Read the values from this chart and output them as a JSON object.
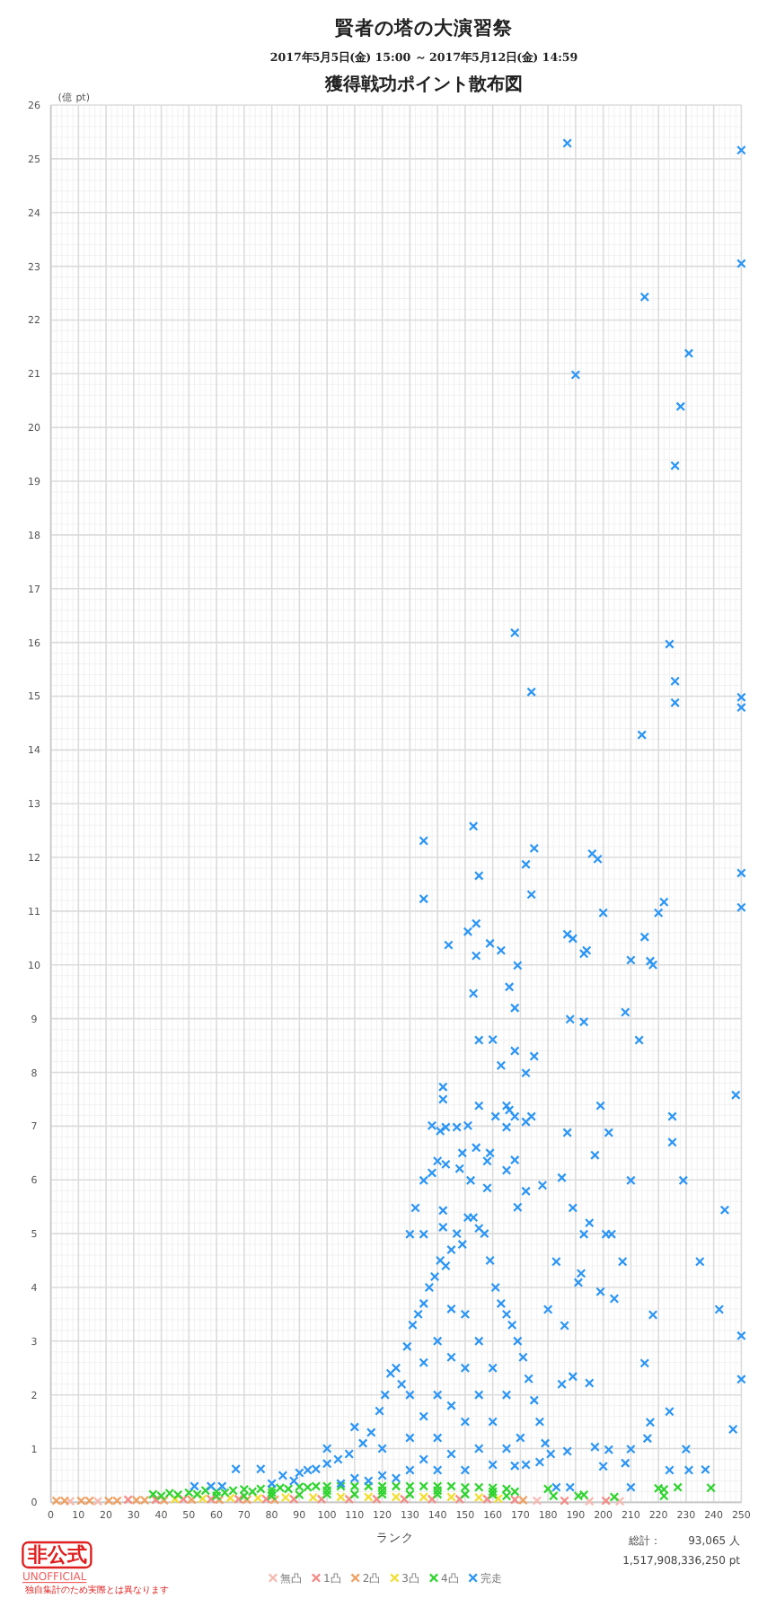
{
  "chart_data": {
    "type": "scatter",
    "title": "賢者の塔の大演習祭",
    "subtitle": "2017年5月5日(金) 15:00 ～ 2017年5月12日(金) 14:59",
    "xlabel": "ランク",
    "ylabel": "(億 pt)",
    "annotations": [
      "獲得戦功ポイント散布図",
      "総計：",
      "93,065 人",
      "1,517,908,336,250 pt",
      "非公式",
      "UNOFFICIAL",
      "独自集計のため実際とは異なります"
    ],
    "xlim": [
      0,
      250
    ],
    "ylim": [
      0,
      26
    ],
    "xticks": [
      0,
      10,
      20,
      30,
      40,
      50,
      60,
      70,
      80,
      90,
      100,
      110,
      120,
      130,
      140,
      150,
      160,
      170,
      180,
      190,
      200,
      210,
      220,
      230,
      240,
      250
    ],
    "yticks": [
      0,
      1,
      2,
      3,
      4,
      5,
      6,
      7,
      8,
      9,
      10,
      11,
      12,
      13,
      14,
      15,
      16,
      17,
      18,
      19,
      20,
      21,
      22,
      23,
      24,
      25,
      26
    ],
    "grid": true,
    "legend": "bottom",
    "marker": "cross",
    "series": [
      {
        "name": "無凸",
        "color": "#f7b9b0",
        "x": [
          7,
          17,
          176,
          195,
          206
        ],
        "values": [
          0.02,
          0.02,
          0.03,
          0.02,
          0.02
        ]
      },
      {
        "name": "1凸",
        "color": "#f48a84",
        "x": [
          28,
          38,
          48,
          58,
          68,
          78,
          88,
          98,
          108,
          118,
          128,
          138,
          148,
          158,
          168,
          186,
          201
        ],
        "values": [
          0.05,
          0.05,
          0.06,
          0.06,
          0.06,
          0.06,
          0.06,
          0.06,
          0.06,
          0.06,
          0.06,
          0.06,
          0.06,
          0.06,
          0.05,
          0.03,
          0.03
        ]
      },
      {
        "name": "2凸",
        "color": "#f0a060",
        "x": [
          2,
          5,
          11,
          14,
          21,
          24,
          31,
          34,
          41,
          51,
          61,
          71,
          81,
          171
        ],
        "values": [
          0.03,
          0.03,
          0.03,
          0.03,
          0.03,
          0.03,
          0.04,
          0.04,
          0.04,
          0.05,
          0.05,
          0.05,
          0.05,
          0.04
        ]
      },
      {
        "name": "3凸",
        "color": "#f2de30",
        "x": [
          45,
          55,
          65,
          75,
          85,
          95,
          105,
          115,
          125,
          135,
          145,
          155,
          162
        ],
        "values": [
          0.06,
          0.07,
          0.08,
          0.08,
          0.09,
          0.09,
          0.1,
          0.1,
          0.1,
          0.1,
          0.1,
          0.09,
          0.07
        ]
      },
      {
        "name": "4凸",
        "color": "#2ed42e",
        "x": [
          37,
          40,
          43,
          46,
          50,
          53,
          56,
          60,
          63,
          66,
          70,
          73,
          76,
          80,
          83,
          86,
          90,
          93,
          96,
          100,
          105,
          110,
          115,
          120,
          125,
          130,
          135,
          140,
          145,
          150,
          155,
          160,
          165,
          168,
          60,
          70,
          80,
          90,
          100,
          110,
          120,
          130,
          140,
          150,
          160,
          165,
          100,
          120,
          140,
          160,
          80,
          180,
          182,
          191,
          193,
          204,
          220,
          222,
          222,
          227,
          239
        ],
        "values": [
          0.15,
          0.12,
          0.17,
          0.14,
          0.18,
          0.15,
          0.22,
          0.2,
          0.18,
          0.22,
          0.24,
          0.2,
          0.25,
          0.24,
          0.27,
          0.25,
          0.29,
          0.28,
          0.3,
          0.3,
          0.3,
          0.3,
          0.3,
          0.3,
          0.3,
          0.3,
          0.3,
          0.3,
          0.3,
          0.28,
          0.28,
          0.27,
          0.25,
          0.2,
          0.12,
          0.12,
          0.12,
          0.14,
          0.15,
          0.15,
          0.15,
          0.15,
          0.15,
          0.15,
          0.14,
          0.12,
          0.22,
          0.22,
          0.22,
          0.2,
          0.18,
          0.25,
          0.12,
          0.12,
          0.14,
          0.1,
          0.26,
          0.24,
          0.12,
          0.28,
          0.27
        ]
      },
      {
        "name": "完走",
        "color": "#2b95f5",
        "x": [
          187,
          250,
          250,
          215,
          231,
          190,
          228,
          226,
          168,
          224,
          226,
          174,
          250,
          250,
          226,
          214,
          153,
          135,
          175,
          196,
          198,
          172,
          250,
          155,
          174,
          135,
          222,
          220,
          200,
          250,
          154,
          151,
          187,
          189,
          215,
          144,
          159,
          163,
          194,
          193,
          154,
          210,
          217,
          218,
          169,
          166,
          153,
          168,
          208,
          188,
          193,
          155,
          160,
          213,
          168,
          175,
          163,
          172,
          142,
          142,
          155,
          165,
          166,
          199,
          248,
          161,
          168,
          174,
          172,
          225,
          138,
          141,
          143,
          147,
          151,
          165,
          187,
          202,
          225,
          154,
          149,
          159,
          197,
          140,
          143,
          158,
          168,
          148,
          165,
          138,
          135,
          152,
          185,
          210,
          229,
          158,
          178,
          172,
          189,
          169,
          132,
          244,
          142,
          195,
          201,
          203,
          193,
          130,
          135,
          142,
          235,
          207,
          183,
          191,
          192,
          242,
          250,
          250,
          247,
          230,
          224,
          217,
          216,
          215,
          218,
          199,
          204,
          180,
          186,
          189,
          185,
          195,
          210,
          231,
          237,
          224,
          210,
          208,
          202,
          197,
          187,
          188,
          183,
          200,
          52,
          58,
          62,
          67,
          76,
          80,
          84,
          88,
          90,
          93,
          96,
          100,
          100,
          104,
          108,
          110,
          113,
          116,
          119,
          121,
          123,
          125,
          127,
          129,
          131,
          133,
          135,
          137,
          139,
          141,
          143,
          145,
          147,
          149,
          151,
          153,
          155,
          157,
          159,
          161,
          163,
          165,
          167,
          169,
          171,
          173,
          175,
          177,
          179,
          181,
          177,
          172,
          168,
          105,
          110,
          115,
          120,
          120,
          125,
          130,
          130,
          130,
          135,
          135,
          135,
          140,
          140,
          140,
          140,
          145,
          145,
          145,
          145,
          150,
          150,
          150,
          150,
          155,
          155,
          155,
          160,
          160,
          160,
          165,
          165,
          170
        ],
        "values": [
          25.29,
          25.16,
          23.05,
          22.43,
          21.38,
          20.98,
          20.39,
          19.29,
          16.18,
          15.97,
          15.28,
          15.08,
          14.98,
          14.79,
          14.88,
          14.28,
          12.58,
          12.31,
          12.17,
          12.07,
          11.97,
          11.87,
          11.71,
          11.66,
          11.31,
          11.23,
          11.17,
          10.97,
          10.97,
          11.07,
          10.77,
          10.62,
          10.57,
          10.49,
          10.52,
          10.37,
          10.4,
          10.27,
          10.27,
          10.21,
          10.17,
          10.09,
          10.07,
          10.0,
          9.99,
          9.59,
          9.47,
          9.2,
          9.12,
          8.99,
          8.94,
          8.6,
          8.61,
          8.6,
          8.4,
          8.3,
          8.13,
          7.99,
          7.73,
          7.5,
          7.38,
          7.38,
          7.3,
          7.38,
          7.58,
          7.18,
          7.18,
          7.18,
          7.08,
          7.18,
          7.01,
          6.91,
          6.98,
          6.98,
          7.01,
          6.98,
          6.88,
          6.88,
          6.7,
          6.6,
          6.5,
          6.5,
          6.46,
          6.35,
          6.29,
          6.35,
          6.37,
          6.21,
          6.18,
          6.13,
          5.99,
          5.99,
          6.04,
          5.99,
          5.99,
          5.85,
          5.9,
          5.79,
          5.48,
          5.49,
          5.48,
          5.44,
          5.43,
          5.2,
          4.99,
          4.99,
          4.99,
          4.99,
          4.99,
          5.12,
          4.48,
          4.48,
          4.48,
          4.09,
          4.26,
          3.59,
          3.1,
          2.29,
          1.36,
          0.99,
          1.69,
          1.49,
          1.19,
          2.59,
          3.49,
          3.92,
          3.79,
          3.59,
          3.29,
          2.34,
          2.2,
          2.22,
          0.99,
          0.6,
          0.61,
          0.6,
          0.28,
          0.73,
          0.98,
          1.03,
          0.95,
          0.28,
          0.28,
          0.67,
          0.3,
          0.3,
          0.3,
          0.62,
          0.62,
          0.35,
          0.5,
          0.4,
          0.55,
          0.6,
          0.62,
          0.72,
          1.0,
          0.8,
          0.9,
          1.4,
          1.1,
          1.3,
          1.7,
          2.0,
          2.4,
          2.5,
          2.2,
          2.9,
          3.3,
          3.5,
          3.7,
          4.0,
          4.2,
          4.5,
          4.4,
          4.7,
          5.0,
          4.8,
          5.3,
          5.3,
          5.1,
          5.0,
          4.5,
          4.0,
          3.7,
          3.5,
          3.3,
          3.0,
          2.7,
          2.3,
          1.9,
          1.5,
          1.1,
          0.9,
          0.75,
          0.7,
          0.68,
          0.35,
          0.45,
          0.4,
          0.5,
          1.0,
          0.45,
          0.6,
          1.2,
          2.0,
          0.8,
          1.6,
          2.6,
          0.6,
          1.2,
          2.0,
          3.0,
          0.9,
          1.8,
          2.7,
          3.6,
          0.6,
          1.5,
          2.5,
          3.5,
          1.0,
          2.0,
          3.0,
          0.7,
          1.5,
          2.5,
          1.0,
          2.0,
          1.2
        ]
      }
    ]
  }
}
